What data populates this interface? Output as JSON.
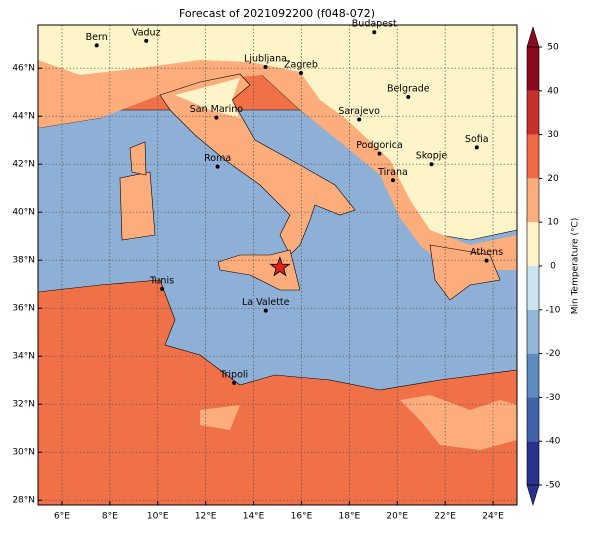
{
  "map": {
    "title": "Forecast of 2021092200 (f048-072)",
    "xlim": [
      5,
      25
    ],
    "ylim": [
      27.8,
      47.8
    ],
    "xticks": [
      {
        "value": 6,
        "label": "6°E"
      },
      {
        "value": 8,
        "label": "8°E"
      },
      {
        "value": 10,
        "label": "10°E"
      },
      {
        "value": 12,
        "label": "12°E"
      },
      {
        "value": 14,
        "label": "14°E"
      },
      {
        "value": 16,
        "label": "16°E"
      },
      {
        "value": 18,
        "label": "18°E"
      },
      {
        "value": 20,
        "label": "20°E"
      },
      {
        "value": 22,
        "label": "22°E"
      },
      {
        "value": 24,
        "label": "24°E"
      }
    ],
    "yticks": [
      {
        "value": 28,
        "label": "28°N"
      },
      {
        "value": 30,
        "label": "30°N"
      },
      {
        "value": 32,
        "label": "32°N"
      },
      {
        "value": 34,
        "label": "34°N"
      },
      {
        "value": 36,
        "label": "36°N"
      },
      {
        "value": 38,
        "label": "38°N"
      },
      {
        "value": 40,
        "label": "40°N"
      },
      {
        "value": 42,
        "label": "42°N"
      },
      {
        "value": 44,
        "label": "44°N"
      },
      {
        "value": 46,
        "label": "46°N"
      }
    ],
    "grid": true,
    "cities": [
      {
        "name": "Bern",
        "lon": 7.45,
        "lat": 46.95
      },
      {
        "name": "Vaduz",
        "lon": 9.52,
        "lat": 47.14
      },
      {
        "name": "Budapest",
        "lon": 19.04,
        "lat": 47.5
      },
      {
        "name": "Ljubljana",
        "lon": 14.5,
        "lat": 46.05
      },
      {
        "name": "Zagreb",
        "lon": 15.98,
        "lat": 45.8
      },
      {
        "name": "San Marino",
        "lon": 12.45,
        "lat": 43.94
      },
      {
        "name": "Sarajevo",
        "lon": 18.41,
        "lat": 43.86
      },
      {
        "name": "Belgrade",
        "lon": 20.46,
        "lat": 44.8
      },
      {
        "name": "Roma",
        "lon": 12.5,
        "lat": 41.9
      },
      {
        "name": "Podgorica",
        "lon": 19.26,
        "lat": 42.44
      },
      {
        "name": "Sofia",
        "lon": 23.32,
        "lat": 42.7
      },
      {
        "name": "Skopje",
        "lon": 21.43,
        "lat": 42.0
      },
      {
        "name": "Tirana",
        "lon": 19.82,
        "lat": 41.33
      },
      {
        "name": "Athens",
        "lon": 23.73,
        "lat": 37.98
      },
      {
        "name": "Tunis",
        "lon": 10.18,
        "lat": 36.8
      },
      {
        "name": "La Valette",
        "lon": 14.51,
        "lat": 35.9
      },
      {
        "name": "Tripoli",
        "lon": 13.19,
        "lat": 32.89
      }
    ],
    "star": {
      "lon": 15.1,
      "lat": 37.7,
      "color": "#e0201b"
    },
    "colorbar": {
      "label": "Min Temperature (°C)",
      "ticks": [
        -50,
        -40,
        -30,
        -20,
        -10,
        0,
        10,
        20,
        30,
        40,
        50
      ],
      "colors": [
        "#2b318f",
        "#3f62a8",
        "#5d8dc0",
        "#93b7d8",
        "#cce4f0",
        "#fdf5c8",
        "#fdad7b",
        "#f06a45",
        "#c9302c",
        "#8b0a1f"
      ]
    }
  }
}
